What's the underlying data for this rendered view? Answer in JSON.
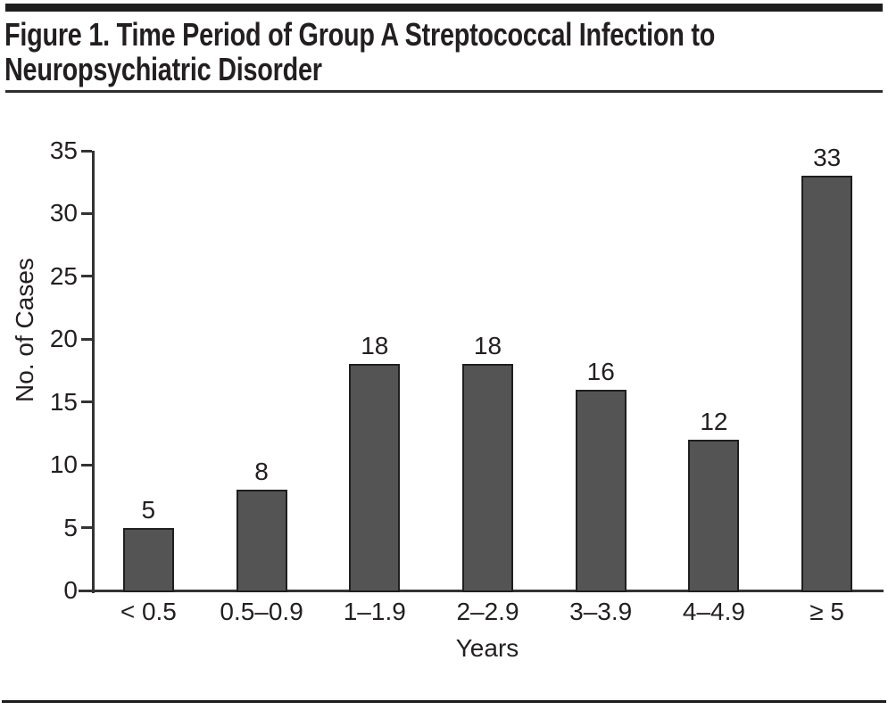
{
  "figure": {
    "title_line1": "Figure 1. Time Period of Group A Streptococcal Infection to",
    "title_line2": "Neuropsychiatric Disorder"
  },
  "chart_data": {
    "type": "bar",
    "title": "Figure 1. Time Period of Group A Streptococcal Infection to Neuropsychiatric Disorder",
    "categories": [
      "< 0.5",
      "0.5–0.9",
      "1–1.9",
      "2–2.9",
      "3–3.9",
      "4–4.9",
      "≥ 5"
    ],
    "values": [
      5,
      8,
      18,
      18,
      16,
      12,
      33
    ],
    "xlabel": "Years",
    "ylabel": "No. of Cases",
    "ylim": [
      0,
      35
    ],
    "yticks": [
      0,
      5,
      10,
      15,
      20,
      25,
      30,
      35
    ],
    "grid": false,
    "legend": "none",
    "bar_fill": "#545454",
    "bar_border": "#1f1f1f",
    "axis_color": "#333333",
    "text_color": "#231f20"
  }
}
